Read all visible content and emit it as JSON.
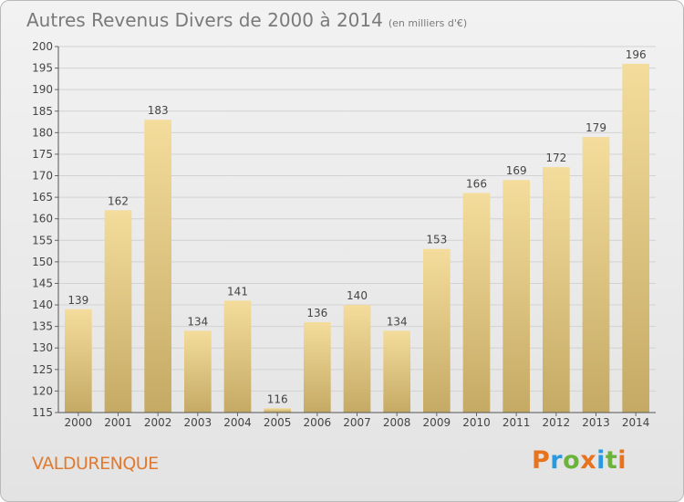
{
  "header": {
    "title": "Autres Revenus Divers de 2000 à 2014",
    "unit": "(en milliers d'€)"
  },
  "footer": {
    "place_name": "VALDURENQUE",
    "logo_text": "Proxiti",
    "logo_colors": [
      "#e8731f",
      "#2a9adf",
      "#6bb33a",
      "#e8731f",
      "#2a9adf",
      "#6bb33a",
      "#e8731f"
    ]
  },
  "chart_data": {
    "type": "bar",
    "categories": [
      "2000",
      "2001",
      "2002",
      "2003",
      "2004",
      "2005",
      "2006",
      "2007",
      "2008",
      "2009",
      "2010",
      "2011",
      "2012",
      "2013",
      "2014"
    ],
    "values": [
      139,
      162,
      183,
      134,
      141,
      116,
      136,
      140,
      134,
      153,
      166,
      169,
      172,
      179,
      196
    ],
    "title": "Autres Revenus Divers de 2000 à 2014",
    "ylim": [
      115,
      200
    ],
    "yticks": [
      115,
      120,
      125,
      130,
      135,
      140,
      145,
      150,
      155,
      160,
      165,
      170,
      175,
      180,
      185,
      190,
      195,
      200
    ],
    "grid": true,
    "bar_color_top": "#f4dc9c",
    "bar_color_bottom": "#c4aa64"
  }
}
